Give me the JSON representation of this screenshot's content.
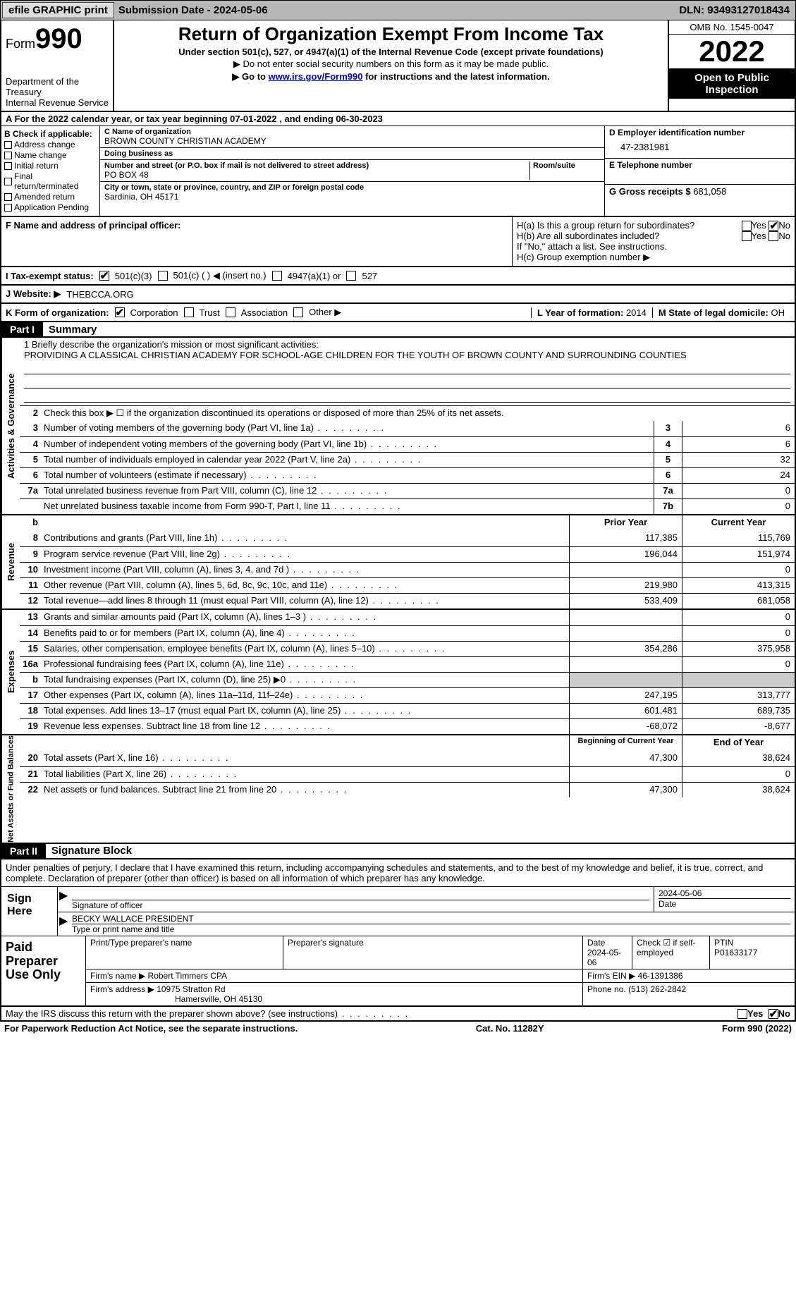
{
  "topbar": {
    "efile": "efile GRAPHIC print",
    "subdate_label": "Submission Date - ",
    "subdate": "2024-05-06",
    "dln_label": "DLN: ",
    "dln": "93493127018434"
  },
  "header": {
    "form_label": "Form",
    "form_no": "990",
    "dept": "Department of the Treasury",
    "irs": "Internal Revenue Service",
    "title": "Return of Organization Exempt From Income Tax",
    "sub1": "Under section 501(c), 527, or 4947(a)(1) of the Internal Revenue Code (except private foundations)",
    "sub2": "▶ Do not enter social security numbers on this form as it may be made public.",
    "sub3_pre": "▶ Go to ",
    "sub3_link": "www.irs.gov/Form990",
    "sub3_post": " for instructions and the latest information.",
    "omb": "OMB No. 1545-0047",
    "year": "2022",
    "otp": "Open to Public Inspection"
  },
  "fy": {
    "line": "A For the 2022 calendar year, or tax year beginning 07-01-2022    , and ending 06-30-2023"
  },
  "colB": {
    "hdr": "B Check if applicable:",
    "items": [
      "Address change",
      "Name change",
      "Initial return",
      "Final return/terminated",
      "Amended return",
      "Application Pending"
    ]
  },
  "colC": {
    "name_lbl": "C Name of organization",
    "name": "BROWN COUNTY CHRISTIAN ACADEMY",
    "dba_lbl": "Doing business as",
    "dba": "",
    "addr_lbl": "Number and street (or P.O. box if mail is not delivered to street address)",
    "room_lbl": "Room/suite",
    "addr": "PO BOX 48",
    "city_lbl": "City or town, state or province, country, and ZIP or foreign postal code",
    "city": "Sardinia, OH  45171"
  },
  "colD": {
    "ein_lbl": "D Employer identification number",
    "ein": "47-2381981",
    "tel_lbl": "E Telephone number",
    "tel": "",
    "gross_lbl": "G Gross receipts $ ",
    "gross": "681,058"
  },
  "secF": {
    "lbl": "F Name and address of principal officer:",
    "val": ""
  },
  "secH": {
    "ha": "H(a)  Is this a group return for subordinates?",
    "ha_yes": "Yes",
    "ha_no": "No",
    "hb": "H(b)  Are all subordinates included?",
    "hb_yes": "Yes",
    "hb_no": "No",
    "hb_note": "If \"No,\" attach a list. See instructions.",
    "hc": "H(c)  Group exemption number ▶"
  },
  "taxrow": {
    "lbl": "I   Tax-exempt status:",
    "o1": "501(c)(3)",
    "o2": "501(c) (  ) ◀ (insert no.)",
    "o3": "4947(a)(1) or",
    "o4": "527"
  },
  "webrow": {
    "lbl": "J   Website: ▶ ",
    "val": "THEBCCA.ORG"
  },
  "korg": {
    "lbl": "K Form of organization:",
    "o1": "Corporation",
    "o2": "Trust",
    "o3": "Association",
    "o4": "Other ▶",
    "l_lbl": "L Year of formation: ",
    "l_val": "2014",
    "m_lbl": "M State of legal domicile: ",
    "m_val": "OH"
  },
  "part1": {
    "tag": "Part I",
    "title": "Summary"
  },
  "mission": {
    "lbl": "1   Briefly describe the organization's mission or most significant activities:",
    "text": "PROIVIDING A CLASSICAL CHRISTIAN ACADEMY FOR SCHOOL-AGE CHILDREN FOR THE YOUTH OF BROWN COUNTY AND SURROUNDING COUNTIES"
  },
  "gov": {
    "tab": "Activities & Governance",
    "l2": "Check this box ▶ ☐ if the organization discontinued its operations or disposed of more than 25% of its net assets.",
    "rows": [
      {
        "n": "3",
        "d": "Number of voting members of the governing body (Part VI, line 1a)",
        "b": "3",
        "v": "6"
      },
      {
        "n": "4",
        "d": "Number of independent voting members of the governing body (Part VI, line 1b)",
        "b": "4",
        "v": "6"
      },
      {
        "n": "5",
        "d": "Total number of individuals employed in calendar year 2022 (Part V, line 2a)",
        "b": "5",
        "v": "32"
      },
      {
        "n": "6",
        "d": "Total number of volunteers (estimate if necessary)",
        "b": "6",
        "v": "24"
      },
      {
        "n": "7a",
        "d": "Total unrelated business revenue from Part VIII, column (C), line 12",
        "b": "7a",
        "v": "0"
      },
      {
        "n": "",
        "d": "Net unrelated business taxable income from Form 990-T, Part I, line 11",
        "b": "7b",
        "v": "0"
      }
    ]
  },
  "rev": {
    "tab": "Revenue",
    "hdr_b": "b",
    "hdr_py": "Prior Year",
    "hdr_cy": "Current Year",
    "rows": [
      {
        "n": "8",
        "d": "Contributions and grants (Part VIII, line 1h)",
        "py": "117,385",
        "cy": "115,769"
      },
      {
        "n": "9",
        "d": "Program service revenue (Part VIII, line 2g)",
        "py": "196,044",
        "cy": "151,974"
      },
      {
        "n": "10",
        "d": "Investment income (Part VIII, column (A), lines 3, 4, and 7d )",
        "py": "",
        "cy": "0"
      },
      {
        "n": "11",
        "d": "Other revenue (Part VIII, column (A), lines 5, 6d, 8c, 9c, 10c, and 11e)",
        "py": "219,980",
        "cy": "413,315"
      },
      {
        "n": "12",
        "d": "Total revenue—add lines 8 through 11 (must equal Part VIII, column (A), line 12)",
        "py": "533,409",
        "cy": "681,058"
      }
    ]
  },
  "exp": {
    "tab": "Expenses",
    "rows": [
      {
        "n": "13",
        "d": "Grants and similar amounts paid (Part IX, column (A), lines 1–3 )",
        "py": "",
        "cy": "0"
      },
      {
        "n": "14",
        "d": "Benefits paid to or for members (Part IX, column (A), line 4)",
        "py": "",
        "cy": "0"
      },
      {
        "n": "15",
        "d": "Salaries, other compensation, employee benefits (Part IX, column (A), lines 5–10)",
        "py": "354,286",
        "cy": "375,958"
      },
      {
        "n": "16a",
        "d": "Professional fundraising fees (Part IX, column (A), line 11e)",
        "py": "",
        "cy": "0"
      },
      {
        "n": "b",
        "d": "Total fundraising expenses (Part IX, column (D), line 25) ▶0",
        "py": "SHADE",
        "cy": "SHADE"
      },
      {
        "n": "17",
        "d": "Other expenses (Part IX, column (A), lines 11a–11d, 11f–24e)",
        "py": "247,195",
        "cy": "313,777"
      },
      {
        "n": "18",
        "d": "Total expenses. Add lines 13–17 (must equal Part IX, column (A), line 25)",
        "py": "601,481",
        "cy": "689,735"
      },
      {
        "n": "19",
        "d": "Revenue less expenses. Subtract line 18 from line 12",
        "py": "-68,072",
        "cy": "-8,677"
      }
    ]
  },
  "net": {
    "tab": "Net Assets or Fund Balances",
    "hdr_b": "Beginning of Current Year",
    "hdr_e": "End of Year",
    "rows": [
      {
        "n": "20",
        "d": "Total assets (Part X, line 16)",
        "b": "47,300",
        "e": "38,624"
      },
      {
        "n": "21",
        "d": "Total liabilities (Part X, line 26)",
        "b": "",
        "e": "0"
      },
      {
        "n": "22",
        "d": "Net assets or fund balances. Subtract line 21 from line 20",
        "b": "47,300",
        "e": "38,624"
      }
    ]
  },
  "part2": {
    "tag": "Part II",
    "title": "Signature Block"
  },
  "sig": {
    "decl": "Under penalties of perjury, I declare that I have examined this return, including accompanying schedules and statements, and to the best of my knowledge and belief, it is true, correct, and complete. Declaration of preparer (other than officer) is based on all information of which preparer has any knowledge.",
    "sign_here": "Sign Here",
    "sig_lbl": "Signature of officer",
    "date_lbl": "Date",
    "date": "2024-05-06",
    "name": "BECKY WALLACE  PRESIDENT",
    "name_lbl": "Type or print name and title"
  },
  "prep": {
    "title": "Paid Preparer Use Only",
    "h1": "Print/Type preparer's name",
    "h2": "Preparer's signature",
    "h3_lbl": "Date",
    "h3": "2024-05-06",
    "h4_lbl": "Check ☑ if self-employed",
    "h5_lbl": "PTIN",
    "h5": "P01633177",
    "firm_lbl": "Firm's name    ▶ ",
    "firm": "Robert Timmers CPA",
    "ein_lbl": "Firm's EIN ▶ ",
    "ein": "46-1391386",
    "addr_lbl": "Firm's address ▶ ",
    "addr1": "10975 Stratton Rd",
    "addr2": "Hamersville, OH  45130",
    "phone_lbl": "Phone no. ",
    "phone": "(513) 262-2842"
  },
  "footer": {
    "q": "May the IRS discuss this return with the preparer shown above? (see instructions)",
    "yes": "Yes",
    "no": "No",
    "pra": "For Paperwork Reduction Act Notice, see the separate instructions.",
    "cat": "Cat. No. 11282Y",
    "form": "Form 990 (2022)"
  },
  "style": {
    "bg": "#ffffff",
    "border": "#000000",
    "shade": "#cccccc",
    "link": "#0000cc",
    "topbar_bg": "#b8b8b8",
    "font_base": 13
  }
}
